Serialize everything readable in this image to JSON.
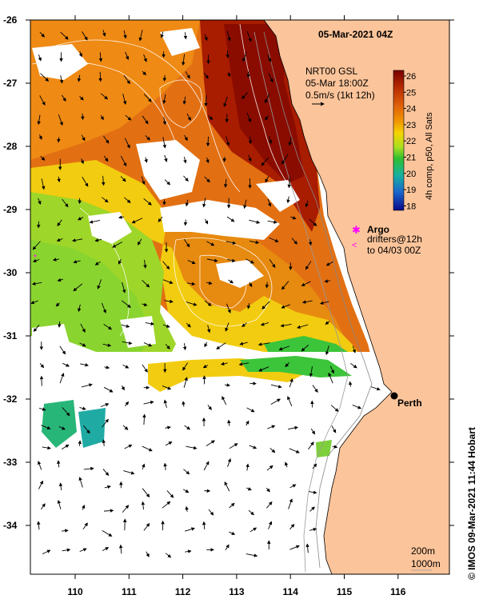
{
  "map": {
    "title": "05-Mar-2021 04Z",
    "product_info": [
      "NRT00 GSL",
      "05-Mar 18:00Z",
      "0.5m/s (1kt 12h)"
    ],
    "colorbar": {
      "label": "4h comp, p50, All Sats",
      "ticks": [
        "26",
        "25",
        "24",
        "23",
        "22",
        "21",
        "20",
        "19",
        "18"
      ],
      "colors": [
        "#7a0000",
        "#b52a00",
        "#e0600a",
        "#f29a00",
        "#f5d400",
        "#a8df22",
        "#2fbf2f",
        "#16b0a0",
        "#1a66cc",
        "#0a0a8a"
      ]
    },
    "legend": {
      "argo_label": "Argo",
      "drifter_label_1": "drifters@12h",
      "drifter_label_2": "to 04/03 00Z",
      "argo_color": "#ff00ff"
    },
    "city": {
      "name": "Perth",
      "lon": 115.86,
      "lat": -31.95
    },
    "lat_ticks": [
      "-26",
      "-27",
      "-28",
      "-29",
      "-30",
      "-31",
      "-32",
      "-33",
      "-34"
    ],
    "lon_ticks": [
      "110",
      "111",
      "112",
      "113",
      "114",
      "115",
      "116"
    ],
    "isobath_labels": [
      "200m",
      "1000m"
    ],
    "credit": "© IMOS 09-Mar-2021 11:44 Hobart",
    "colors": {
      "land": "#fcc49a",
      "cloud": "#ffffff",
      "frame": "#000000"
    }
  }
}
